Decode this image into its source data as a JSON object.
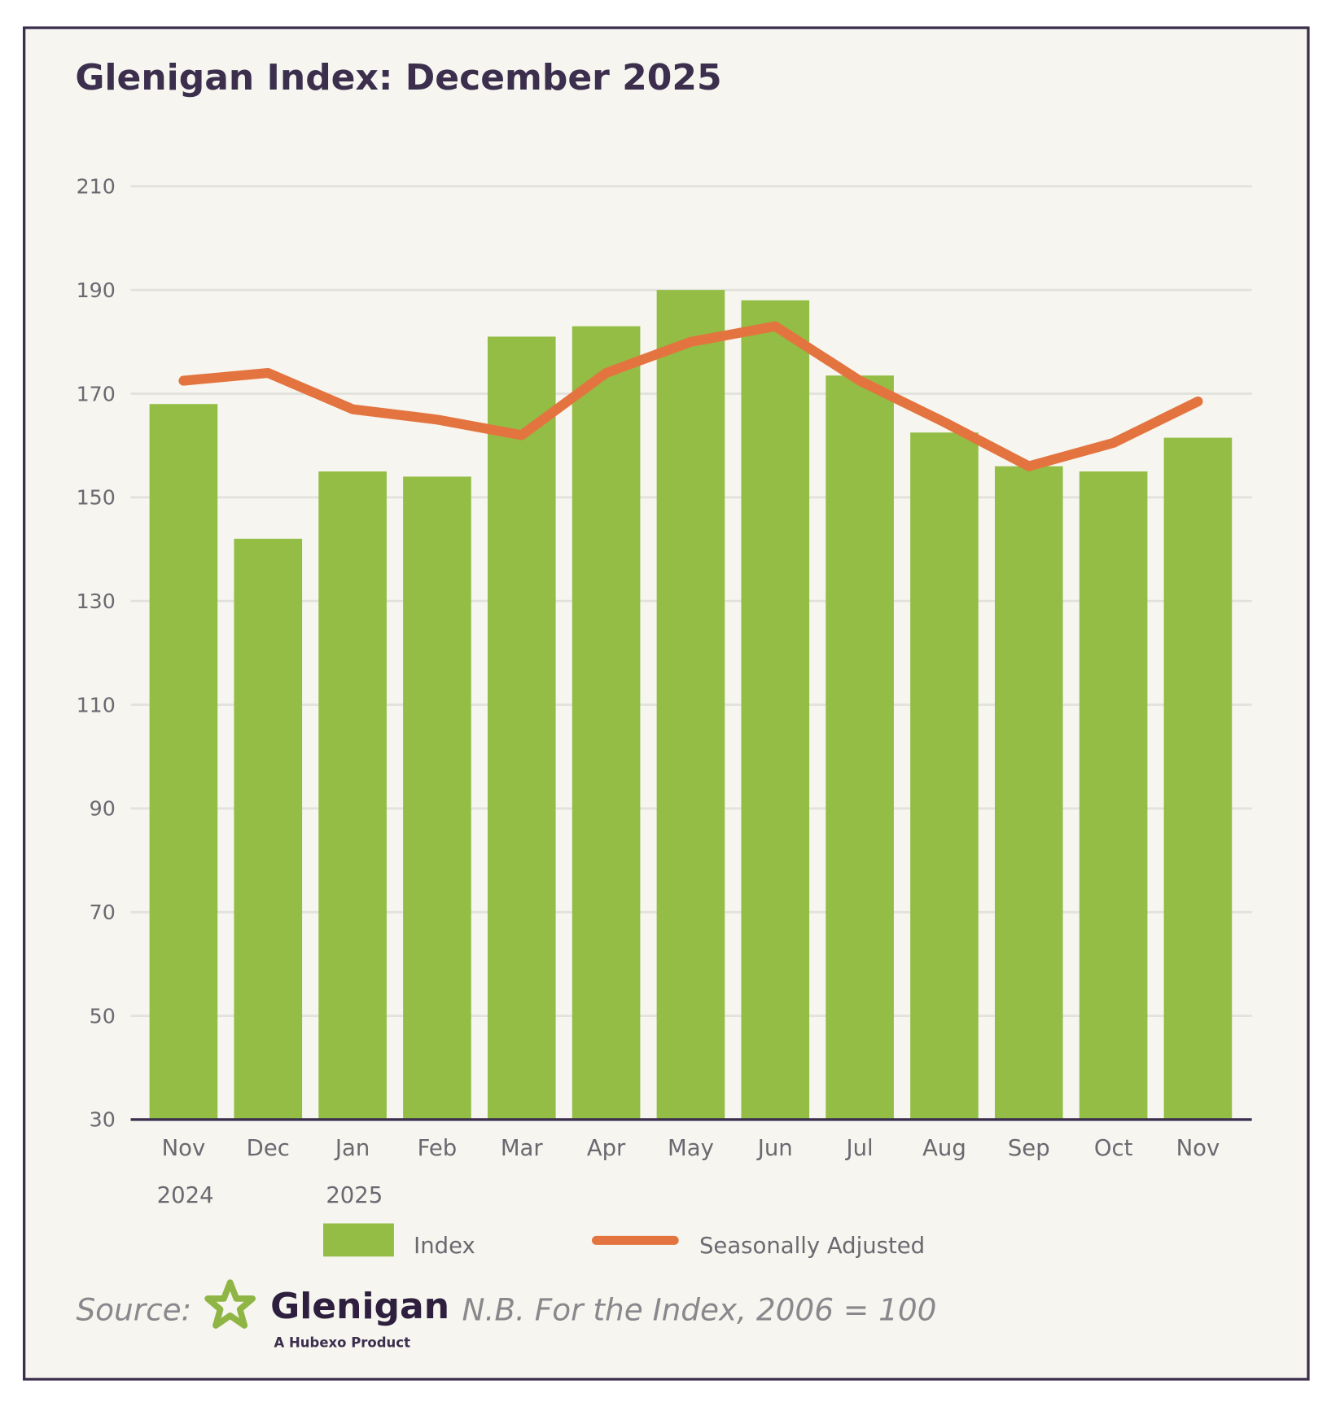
{
  "chart_data": {
    "type": "bar",
    "title": "Glenigan Index: December 2025",
    "categories": [
      "Nov",
      "Dec",
      "Jan",
      "Feb",
      "Mar",
      "Apr",
      "May",
      "Jun",
      "Jul",
      "Aug",
      "Sep",
      "Oct",
      "Nov"
    ],
    "category_years": [
      "2024",
      "",
      "2025",
      "",
      "",
      "",
      "",
      "",
      "",
      "",
      "",
      "",
      ""
    ],
    "series": [
      {
        "name": "Index",
        "type": "bar",
        "color": "#93bd44",
        "values": [
          168,
          142,
          155,
          154,
          181,
          183,
          190,
          188,
          173.5,
          162.5,
          156,
          155,
          161.5
        ]
      },
      {
        "name": "Seasonally Adjusted",
        "type": "line",
        "color": "#e4743f",
        "values": [
          172.5,
          174,
          167,
          165,
          162,
          174,
          180,
          183,
          172.5,
          164.5,
          156,
          160.5,
          168.5
        ]
      }
    ],
    "yticks": [
      210,
      190,
      170,
      150,
      130,
      110,
      90,
      70,
      50,
      30
    ],
    "ylim": [
      30,
      210
    ],
    "xlabel": "",
    "ylabel": "",
    "grid": true,
    "legend": "bottom"
  },
  "footer": {
    "source_label": "Source:",
    "brand": "Glenigan",
    "brand_tagline": "A Hubexo Product",
    "note": "N.B. For the Index, 2006 = 100"
  },
  "colors": {
    "background": "#f6f5ef",
    "border": "#3b2f4d",
    "title": "#3b2f4d",
    "axis_text": "#6b6870",
    "logo_star": "#8fb544"
  }
}
